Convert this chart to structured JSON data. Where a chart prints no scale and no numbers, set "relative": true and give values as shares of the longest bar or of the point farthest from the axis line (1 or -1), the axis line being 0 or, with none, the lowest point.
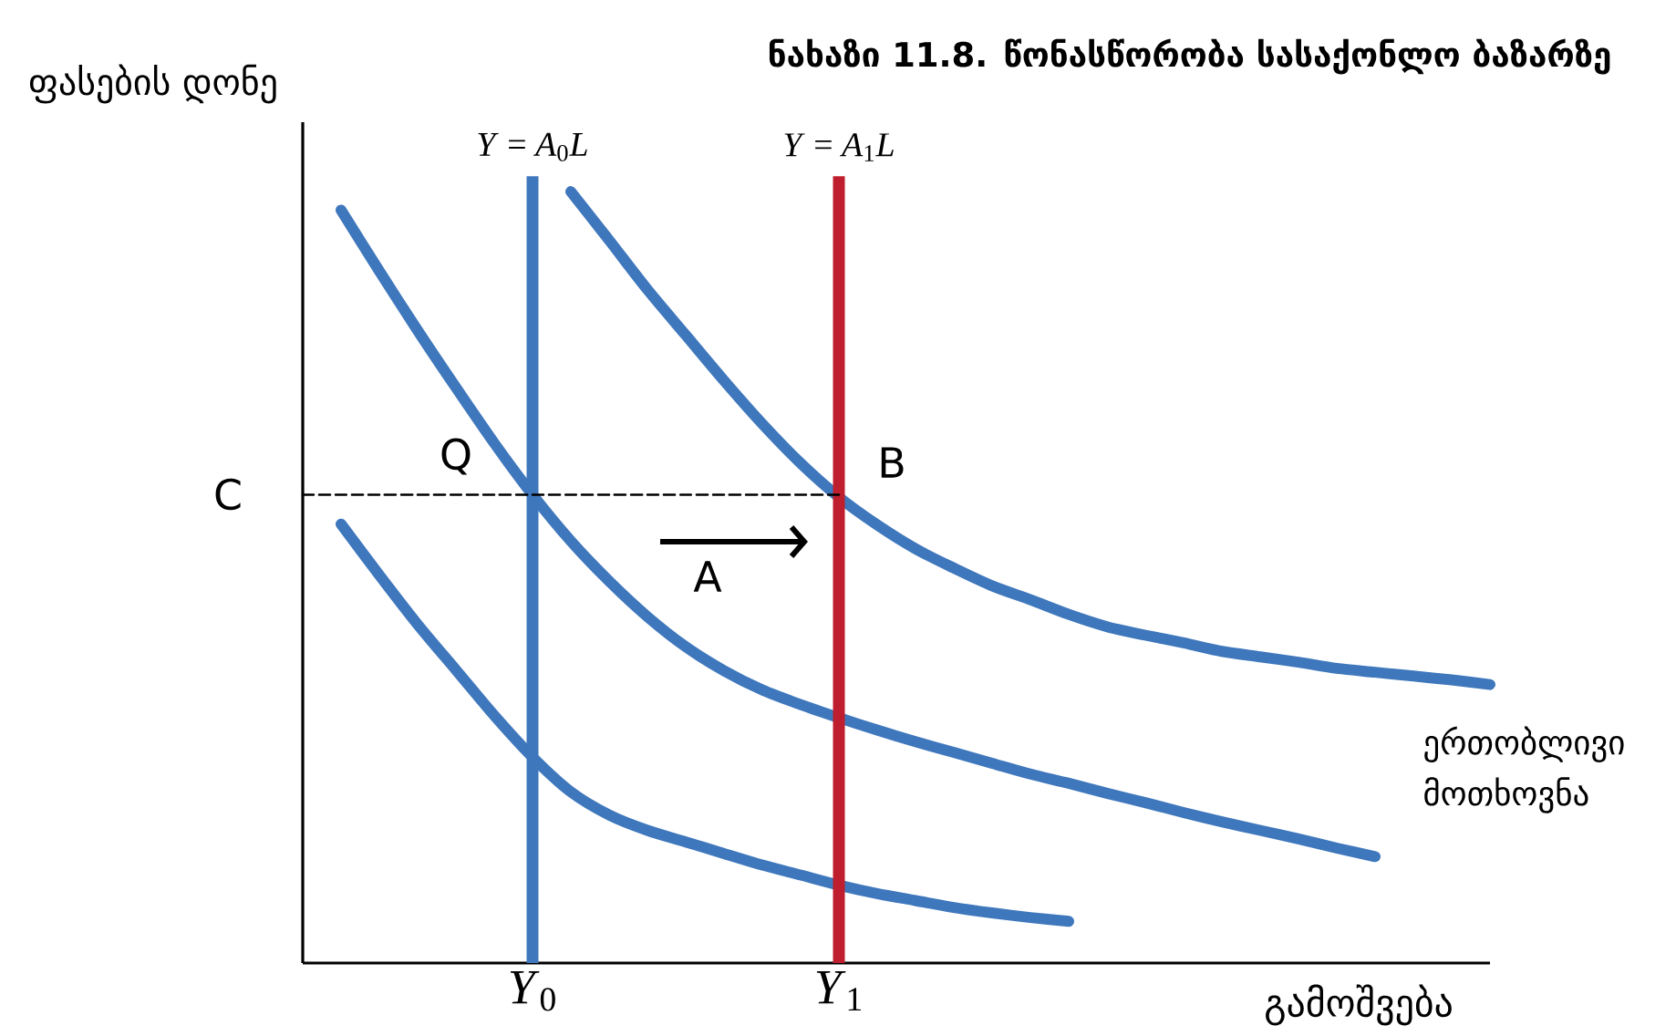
{
  "chart_data": {
    "type": "line",
    "title": "ნახაზი 11.8. წონასწორობა სასაქონლო ბაზარზე",
    "xlabel": "გამოშვება",
    "ylabel": "ფასების დონე",
    "relative": true,
    "categories": [
      null,
      null,
      null,
      null,
      null,
      null,
      "*Y*$_{0}$",
      null,
      null,
      null,
      null,
      null,
      null,
      null,
      "*Y*$_{1}$",
      null,
      null,
      null,
      null,
      null,
      null,
      null,
      null,
      null,
      null,
      null,
      null,
      null,
      null,
      null,
      null,
      null
    ],
    "series": [
      {
        "color": "#3f77bc",
        "values": [
          null,
          null,
          null,
          null,
          null,
          null,
          null,
          1.0,
          0.937,
          0.873,
          0.814,
          0.755,
          0.699,
          0.648,
          0.604,
          0.568,
          0.537,
          0.512,
          0.489,
          0.471,
          0.452,
          0.436,
          0.425,
          0.415,
          0.404,
          0.397,
          0.39,
          0.382,
          0.377,
          0.372,
          0.367,
          0.361
        ]
      },
      {
        "color": "#3f77bc",
        "values": [
          null,
          0.976,
          0.897,
          0.82,
          0.746,
          0.674,
          0.607,
          0.547,
          0.495,
          0.449,
          0.41,
          0.379,
          0.354,
          0.335,
          0.318,
          0.302,
          0.287,
          0.273,
          0.259,
          0.245,
          0.233,
          0.22,
          0.208,
          0.195,
          0.183,
          0.172,
          0.161,
          0.149,
          0.138,
          null,
          null,
          null
        ]
      },
      {
        "color": "#3f77bc",
        "values": [
          null,
          0.569,
          0.503,
          0.439,
          0.38,
          0.321,
          0.267,
          0.222,
          0.192,
          0.172,
          0.157,
          0.142,
          0.127,
          0.114,
          0.101,
          0.09,
          0.081,
          0.072,
          0.065,
          0.059,
          0.054,
          null,
          null,
          null,
          null,
          null,
          null,
          null,
          null,
          null,
          null,
          null
        ]
      },
      {
        "color": "#000000",
        "line_style": "dashed",
        "values": [
          0.607,
          0.607,
          0.607,
          0.607,
          0.607,
          0.607,
          0.607,
          0.607,
          0.607,
          0.607,
          0.607,
          0.607,
          0.607,
          0.607,
          0.607,
          null,
          null,
          null,
          null,
          null,
          null,
          null,
          null,
          null,
          null,
          null,
          null,
          null,
          null,
          null,
          null,
          null
        ]
      }
    ],
    "ref_lines": [
      {
        "axis": "x",
        "value": "*Y*$_{0}$",
        "label": "*Y* = *A*$_{0}$*L*",
        "color": "#3f77bc"
      },
      {
        "axis": "x",
        "value": "*Y*$_{1}$",
        "label": "*Y* = *A*$_{1}$*L*",
        "color": "#be1e2d"
      }
    ],
    "annotations": [
      {
        "text": "Q",
        "x": "*Y*$_{0}$",
        "y": 0.607
      },
      {
        "text": "B",
        "x": "*Y*$_{1}$",
        "y": 0.604
      },
      "A",
      "C",
      "ერთობლივი მოთხოვნა"
    ]
  }
}
